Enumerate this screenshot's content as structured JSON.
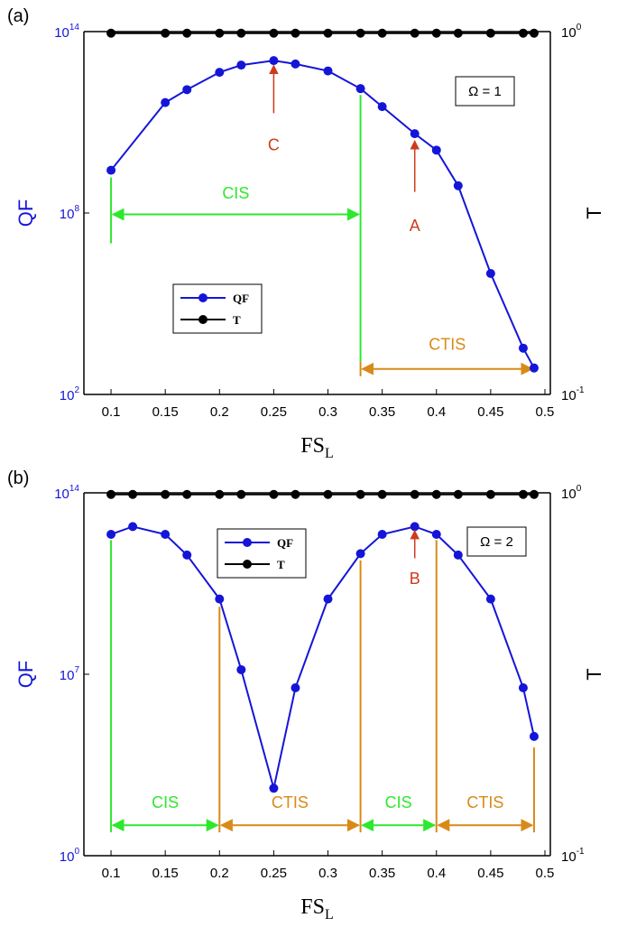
{
  "chart_data": [
    {
      "panel_label": "(a)",
      "type": "line",
      "xlabel": "FS",
      "xlabel_sub": "L",
      "ylabel_left": "QF",
      "ylabel_right": "T",
      "xlim": [
        0.075,
        0.505
      ],
      "ylim_left": [
        100,
        100000000000000
      ],
      "ylim_right": [
        0.1,
        1
      ],
      "yscale": "log",
      "x_ticks": [
        "0.1",
        "0.15",
        "0.2",
        "0.25",
        "0.3",
        "0.35",
        "0.4",
        "0.45",
        "0.5"
      ],
      "y_ticks_left": [
        {
          "base": "10",
          "exp": "2",
          "value": 100
        },
        {
          "base": "10",
          "exp": "8",
          "value": 100000000
        },
        {
          "base": "10",
          "exp": "14",
          "value": 100000000000000
        }
      ],
      "y_ticks_right": [
        {
          "base": "10",
          "exp": "-1",
          "value": 0.1
        },
        {
          "base": "10",
          "exp": "0",
          "value": 1
        }
      ],
      "omega_label": "Ω = 1",
      "legend": {
        "placement": "center-left",
        "entries": [
          {
            "name": "QF",
            "color": "#1515d8"
          },
          {
            "name": "T",
            "color": "#000000"
          }
        ]
      },
      "series": [
        {
          "name": "QF",
          "axis": "left",
          "color": "#1515d8",
          "x": [
            0.1,
            0.15,
            0.17,
            0.2,
            0.22,
            0.25,
            0.27,
            0.3,
            0.33,
            0.35,
            0.38,
            0.4,
            0.42,
            0.45,
            0.48,
            0.49
          ],
          "y": [
            2600000000.0,
            450000000000.0,
            1200000000000.0,
            4500000000000.0,
            7800000000000.0,
            11000000000000.0,
            8500000000000.0,
            5000000000000.0,
            1300000000000.0,
            330000000000.0,
            42000000000.0,
            12000000000.0,
            800000000.0,
            1000000.0,
            3400.0,
            750.0
          ]
        },
        {
          "name": "T",
          "axis": "right",
          "color": "#000000",
          "x": [
            0.1,
            0.15,
            0.17,
            0.2,
            0.22,
            0.25,
            0.27,
            0.3,
            0.33,
            0.35,
            0.38,
            0.4,
            0.42,
            0.45,
            0.48,
            0.49
          ],
          "y": [
            0.99,
            0.99,
            0.99,
            0.99,
            0.99,
            0.99,
            0.99,
            0.99,
            0.99,
            0.99,
            0.99,
            0.99,
            0.99,
            0.99,
            0.99,
            0.99
          ]
        }
      ],
      "annotations": [
        {
          "text": "C",
          "x": 0.25,
          "tip_qf": 10000000000000.0,
          "tail_qf": 200000000000.0,
          "text_qf": 12000000000.0
        },
        {
          "text": "A",
          "x": 0.38,
          "tip_qf": 32000000000.0,
          "tail_qf": 500000000.0,
          "text_qf": 25000000.0
        }
      ],
      "regions": [
        {
          "text": "CIS",
          "color": "#2ee82e",
          "x0": 0.1,
          "x1": 0.33,
          "arrow_qf": 90000000.0,
          "text_qf": 300000000.0
        },
        {
          "text": "CTIS",
          "color": "#d88a18",
          "x0": 0.33,
          "x1": 0.49,
          "arrow_qf": 700,
          "text_qf": 3000
        }
      ],
      "vlines": [
        {
          "x": 0.1,
          "color": "#2ee82e",
          "from_qf": 10000000.0,
          "to_qf": 1500000000.0
        },
        {
          "x": 0.33,
          "color": "#2ee82e",
          "from_qf": 1200.0,
          "to_qf": 800000000000.0
        },
        {
          "x": 0.33,
          "color": "#d88a18",
          "from_qf": 400,
          "to_qf": 1200.0
        }
      ]
    },
    {
      "panel_label": "(b)",
      "type": "line",
      "xlabel": "FS",
      "xlabel_sub": "L",
      "ylabel_left": "QF",
      "ylabel_right": "T",
      "xlim": [
        0.075,
        0.505
      ],
      "ylim_left": [
        1,
        100000000000000
      ],
      "ylim_right": [
        0.1,
        1
      ],
      "yscale": "log",
      "x_ticks": [
        "0.1",
        "0.15",
        "0.2",
        "0.25",
        "0.3",
        "0.35",
        "0.4",
        "0.45",
        "0.5"
      ],
      "y_ticks_left": [
        {
          "base": "10",
          "exp": "0",
          "value": 1
        },
        {
          "base": "10",
          "exp": "7",
          "value": 10000000
        },
        {
          "base": "10",
          "exp": "14",
          "value": 100000000000000
        }
      ],
      "y_ticks_right": [
        {
          "base": "10",
          "exp": "-1",
          "value": 0.1
        },
        {
          "base": "10",
          "exp": "0",
          "value": 1
        }
      ],
      "omega_label": "Ω = 2",
      "legend": {
        "placement": "top-center",
        "entries": [
          {
            "name": "QF",
            "color": "#1515d8"
          },
          {
            "name": "T",
            "color": "#000000"
          }
        ]
      },
      "series": [
        {
          "name": "QF",
          "axis": "left",
          "color": "#1515d8",
          "x": [
            0.1,
            0.12,
            0.15,
            0.17,
            0.2,
            0.22,
            0.25,
            0.27,
            0.3,
            0.33,
            0.35,
            0.38,
            0.4,
            0.42,
            0.45,
            0.48,
            0.49
          ],
          "y": [
            2500000000000.0,
            5000000000000.0,
            2500000000000.0,
            400000000000.0,
            8000000000.0,
            15000000.0,
            400.0,
            3000000.0,
            8000000000.0,
            450000000000.0,
            2500000000000.0,
            5000000000000.0,
            2500000000000.0,
            400000000000.0,
            8000000000.0,
            3000000.0,
            40000.0
          ]
        },
        {
          "name": "T",
          "axis": "right",
          "color": "#000000",
          "x": [
            0.1,
            0.12,
            0.15,
            0.17,
            0.2,
            0.22,
            0.25,
            0.27,
            0.3,
            0.33,
            0.35,
            0.38,
            0.4,
            0.42,
            0.45,
            0.48,
            0.49
          ],
          "y": [
            0.99,
            0.99,
            0.99,
            0.99,
            0.99,
            0.99,
            0.99,
            0.99,
            0.99,
            0.99,
            0.99,
            0.99,
            0.99,
            0.99,
            0.99,
            0.99,
            0.99
          ]
        }
      ],
      "annotations": [
        {
          "text": "B",
          "x": 0.38,
          "tip_qf": 4800000000000.0,
          "tail_qf": 300000000000.0,
          "text_qf": 30000000000.0
        }
      ],
      "regions": [
        {
          "text": "CIS",
          "color": "#2ee82e",
          "x0": 0.1,
          "x1": 0.2,
          "arrow_qf": 15,
          "text_qf": 70
        },
        {
          "text": "CTIS",
          "color": "#d88a18",
          "x0": 0.2,
          "x1": 0.33,
          "arrow_qf": 15,
          "text_qf": 70
        },
        {
          "text": "CIS",
          "color": "#2ee82e",
          "x0": 0.33,
          "x1": 0.4,
          "arrow_qf": 15,
          "text_qf": 70
        },
        {
          "text": "CTIS",
          "color": "#d88a18",
          "x0": 0.4,
          "x1": 0.49,
          "arrow_qf": 15,
          "text_qf": 70
        }
      ],
      "vlines": [
        {
          "x": 0.1,
          "color": "#2ee82e",
          "from_qf": 8,
          "to_qf": 1500000000000.0
        },
        {
          "x": 0.2,
          "color": "#d88a18",
          "from_qf": 8,
          "to_qf": 4000000000.0
        },
        {
          "x": 0.33,
          "color": "#d88a18",
          "from_qf": 8,
          "to_qf": 250000000000.0
        },
        {
          "x": 0.4,
          "color": "#d88a18",
          "from_qf": 8,
          "to_qf": 1500000000000.0
        },
        {
          "x": 0.49,
          "color": "#d88a18",
          "from_qf": 8,
          "to_qf": 15000.0
        }
      ]
    }
  ]
}
